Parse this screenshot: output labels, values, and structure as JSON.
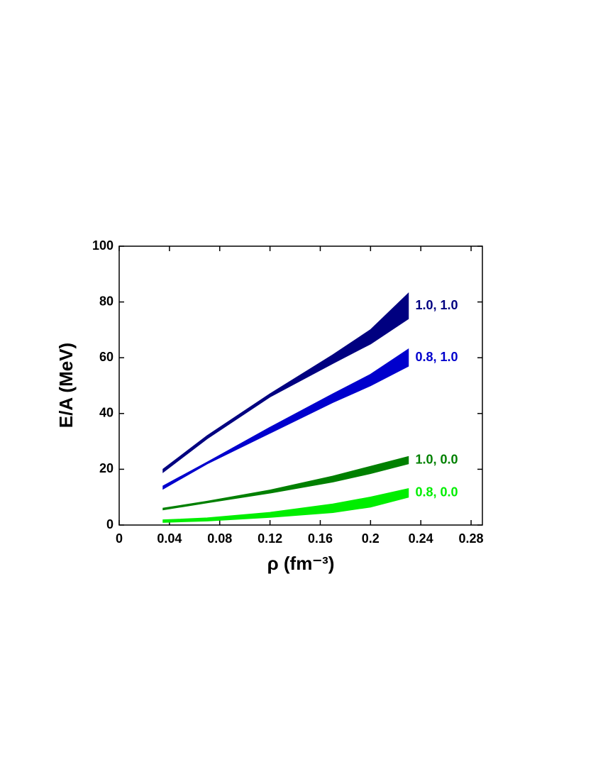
{
  "chart_data": {
    "type": "band",
    "x_label": "ρ (fm⁻³)",
    "y_label": "E/A (MeV)",
    "x": [
      0.035,
      0.07,
      0.12,
      0.17,
      0.2,
      0.23
    ],
    "series": [
      {
        "name": "1.0, 1.0",
        "color": "#000080",
        "low": [
          19,
          31,
          46,
          58,
          65,
          74
        ],
        "high": [
          20,
          32,
          47,
          61,
          70,
          83
        ]
      },
      {
        "name": "0.8, 1.0",
        "color": "#0000cd",
        "low": [
          13,
          22,
          33,
          44,
          50,
          57
        ],
        "high": [
          14,
          22.5,
          35,
          47,
          54,
          63
        ]
      },
      {
        "name": "1.0, 0.0",
        "color": "#008000",
        "low": [
          5.5,
          8,
          11.5,
          15.5,
          18.5,
          22
        ],
        "high": [
          6,
          8.5,
          12.5,
          17.5,
          21,
          24.5
        ]
      },
      {
        "name": "0.8, 0.0",
        "color": "#00ee00",
        "low": [
          1,
          1.5,
          2.8,
          4.5,
          6.5,
          10
        ],
        "high": [
          1.8,
          2.5,
          4.5,
          7.5,
          10,
          13
        ]
      }
    ],
    "xlim": [
      0,
      0.289
    ],
    "xticks": [
      0,
      0.04,
      0.08,
      0.12,
      0.16,
      0.2,
      0.24,
      0.28
    ],
    "ylim": [
      0,
      100
    ],
    "yticks": [
      0,
      20,
      40,
      60,
      80,
      100
    ]
  }
}
